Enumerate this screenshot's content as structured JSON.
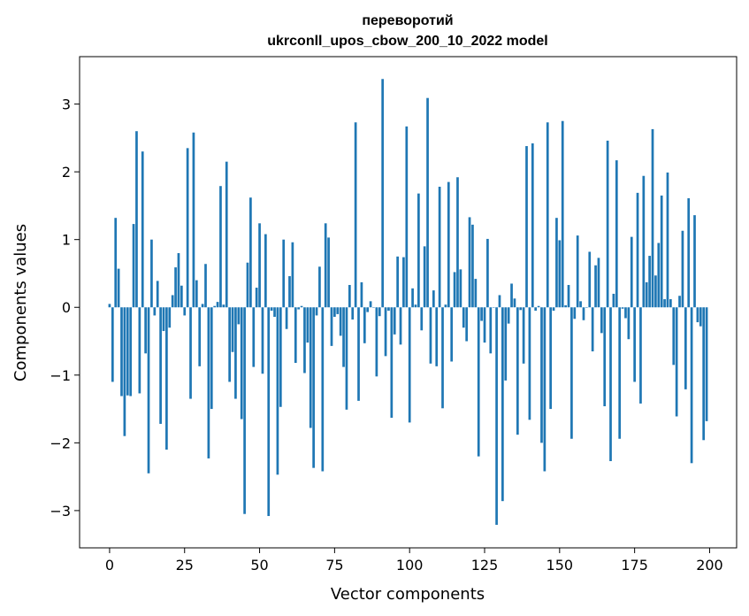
{
  "chart_data": {
    "type": "bar",
    "title_lines": [
      "переворотий",
      "ukrconll_upos_cbow_200_10_2022 model"
    ],
    "xlabel": "Vector components",
    "ylabel": "Components values",
    "xlim": [
      -10,
      209
    ],
    "ylim": [
      -3.55,
      3.7
    ],
    "xticks": [
      0,
      25,
      50,
      75,
      100,
      125,
      150,
      175,
      200
    ],
    "yticks": [
      -3,
      -2,
      -1,
      0,
      1,
      2,
      3
    ],
    "ytick_labels": [
      "−3",
      "−2",
      "−1",
      "0",
      "1",
      "2",
      "3"
    ],
    "bar_color": "#1f77b4",
    "grid": false,
    "values": [
      0.05,
      -1.1,
      1.32,
      0.57,
      -1.31,
      -1.9,
      -1.3,
      -1.31,
      1.23,
      2.6,
      -1.27,
      2.3,
      -0.68,
      -2.45,
      1.0,
      -0.12,
      0.39,
      -1.72,
      -0.35,
      -2.1,
      -0.3,
      0.18,
      0.59,
      0.8,
      0.32,
      -0.12,
      2.35,
      -1.35,
      2.58,
      0.4,
      -0.87,
      0.05,
      0.64,
      -2.23,
      -1.5,
      0.02,
      0.08,
      1.79,
      0.04,
      2.15,
      -1.1,
      -0.66,
      -1.35,
      -0.25,
      -1.65,
      -3.05,
      0.66,
      1.62,
      -0.88,
      0.29,
      1.24,
      -0.98,
      1.08,
      -3.08,
      -0.05,
      -0.14,
      -2.47,
      -1.47,
      1.0,
      -0.32,
      0.46,
      0.96,
      -0.82,
      -0.03,
      0.02,
      -0.97,
      -0.52,
      -1.78,
      -2.37,
      -0.12,
      0.6,
      -2.42,
      1.24,
      1.03,
      -0.57,
      -0.14,
      -0.1,
      -0.42,
      -0.88,
      -1.51,
      0.33,
      -0.18,
      2.73,
      -1.38,
      0.37,
      -0.53,
      -0.07,
      0.09,
      0.0,
      -1.02,
      -0.13,
      3.37,
      -0.72,
      -0.05,
      -1.63,
      -0.4,
      0.75,
      -0.55,
      0.74,
      2.67,
      -1.7,
      0.28,
      0.04,
      1.68,
      -0.34,
      0.9,
      3.09,
      -0.83,
      0.25,
      -0.87,
      1.78,
      -1.49,
      0.04,
      1.85,
      -0.8,
      0.52,
      1.92,
      0.56,
      -0.3,
      -0.5,
      1.33,
      1.22,
      0.42,
      -2.2,
      -0.2,
      -0.52,
      1.01,
      -0.68,
      0.0,
      -3.21,
      0.18,
      -2.86,
      -1.08,
      -0.24,
      0.35,
      0.13,
      -1.88,
      -0.04,
      -0.83,
      2.38,
      -1.66,
      2.42,
      -0.05,
      0.02,
      -2.0,
      -2.42,
      2.73,
      -1.5,
      -0.05,
      1.32,
      0.99,
      2.75,
      0.03,
      0.33,
      -1.94,
      -0.17,
      1.06,
      0.09,
      -0.19,
      0.0,
      0.82,
      -0.65,
      0.62,
      0.73,
      -0.38,
      -1.46,
      2.46,
      -2.27,
      0.2,
      2.17,
      -1.94,
      -0.02,
      -0.16,
      -0.47,
      1.04,
      -1.1,
      1.69,
      -1.42,
      1.94,
      0.37,
      0.76,
      2.63,
      0.47,
      0.95,
      1.65,
      0.12,
      1.99,
      0.12,
      -0.85,
      -1.61,
      0.17,
      1.13,
      -1.21,
      1.61,
      -2.3,
      1.36,
      -0.22,
      -0.28,
      -1.96,
      -1.68
    ]
  }
}
